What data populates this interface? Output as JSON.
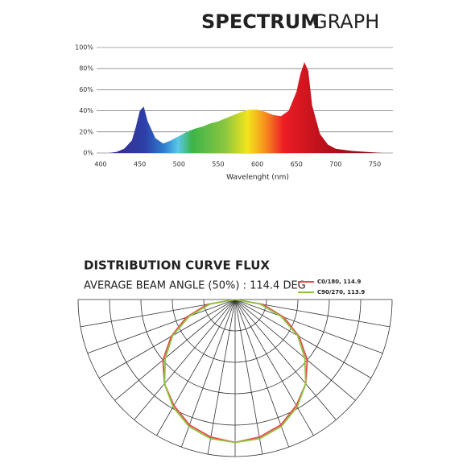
{
  "chart_data": [
    {
      "type": "area",
      "title": [
        "SPECTRUM",
        "GRAPH"
      ],
      "xlabel": "Wavelenght (nm)",
      "x": [
        410,
        420,
        430,
        440,
        445,
        450,
        455,
        460,
        470,
        480,
        490,
        500,
        510,
        520,
        530,
        540,
        550,
        560,
        570,
        580,
        590,
        600,
        610,
        620,
        630,
        640,
        650,
        655,
        660,
        665,
        670,
        680,
        690,
        700,
        720,
        740,
        760
      ],
      "values": [
        0,
        1,
        4,
        12,
        25,
        40,
        44,
        30,
        14,
        9,
        12,
        16,
        20,
        23,
        25,
        28,
        30,
        33,
        36,
        39,
        41,
        41,
        39,
        36,
        35,
        40,
        58,
        75,
        86,
        78,
        45,
        18,
        8,
        4,
        2,
        1,
        0
      ],
      "xlim": [
        400,
        770
      ],
      "xticks": [
        400,
        450,
        500,
        550,
        600,
        650,
        700,
        750
      ],
      "ylim": [
        0,
        100
      ],
      "yticks": [
        {
          "value": 0,
          "label": "0%"
        },
        {
          "value": 20,
          "label": "20%"
        },
        {
          "value": 40,
          "label": "40%"
        },
        {
          "value": 60,
          "label": "60%"
        },
        {
          "value": 80,
          "label": "80%"
        },
        {
          "value": 100,
          "label": "100%"
        }
      ],
      "grid": true
    },
    {
      "type": "polar",
      "title": "DISTRIBUTION CURVE FLUX",
      "subtitle": "AVERAGE BEAM ANGLE  (50%) : 114.4 DEG",
      "angles": [
        -90,
        -80,
        -70,
        -60,
        -50,
        -40,
        -30,
        -20,
        -10,
        0,
        10,
        20,
        30,
        40,
        50,
        60,
        70,
        80,
        90
      ],
      "rlim": [
        0,
        100
      ],
      "rticks": [
        20,
        40,
        60,
        80,
        100
      ],
      "series": [
        {
          "name": "C0/180, 114.9",
          "color": "#e8474c",
          "values": [
            0,
            18,
            33,
            47,
            60,
            70,
            78,
            85,
            89,
            91,
            89,
            85,
            78,
            70,
            60,
            47,
            33,
            18,
            0
          ]
        },
        {
          "name": "C90/270, 113.9",
          "color": "#8cc63f",
          "values": [
            0,
            16,
            31,
            46,
            58,
            70,
            79,
            86,
            90,
            91,
            90,
            86,
            79,
            70,
            58,
            46,
            31,
            16,
            0
          ]
        }
      ]
    }
  ]
}
